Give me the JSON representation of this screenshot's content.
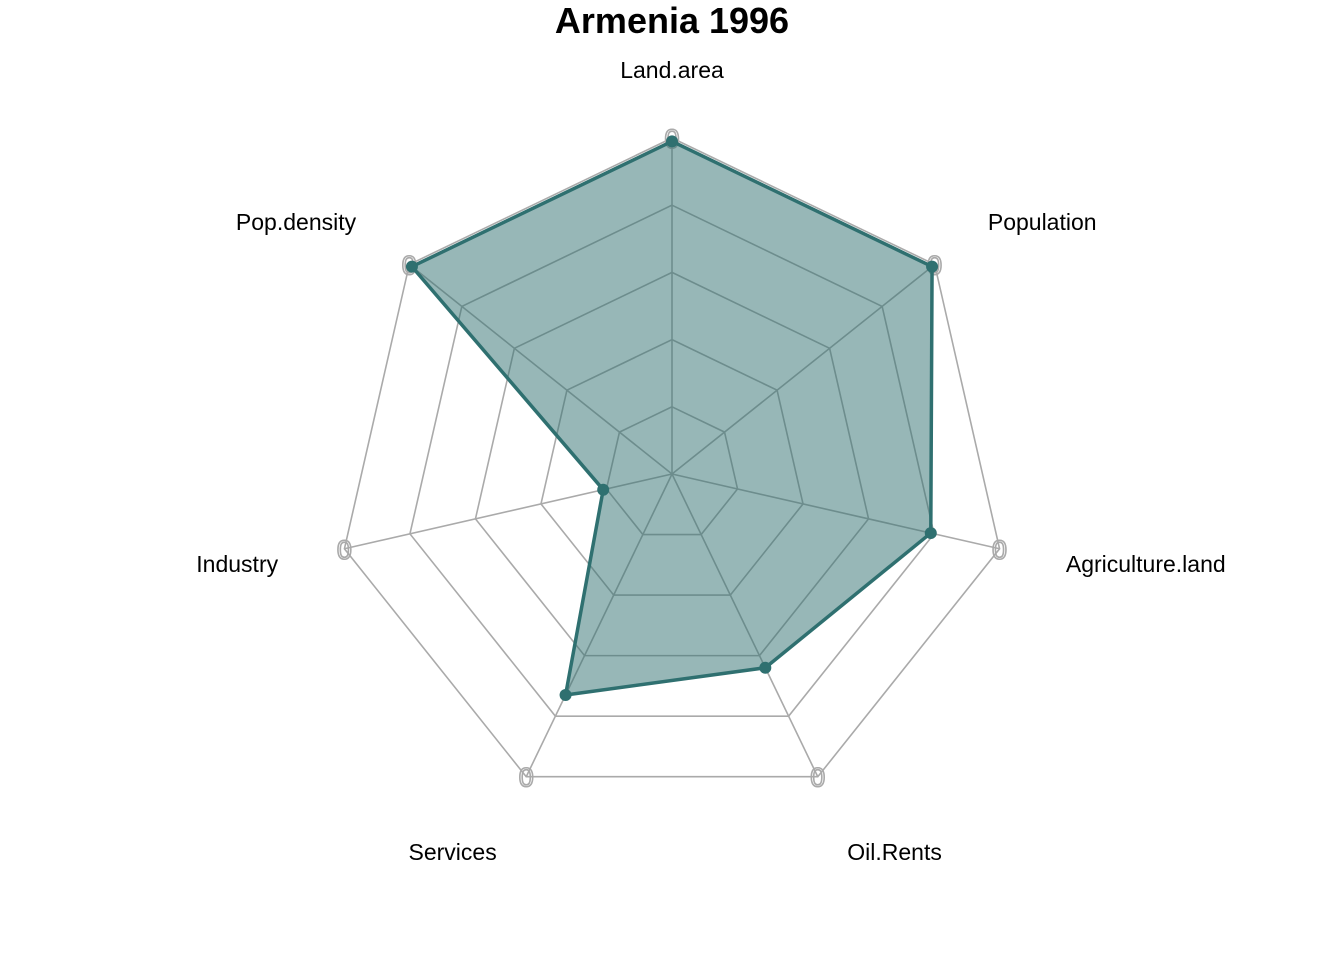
{
  "chart_data": {
    "type": "radar",
    "title": "Armenia 1996",
    "axes": [
      "Land.area",
      "Population",
      "Agriculture.land",
      "Oil.Rents",
      "Services",
      "Industry",
      "Pop.density"
    ],
    "axis_range": [
      0,
      1
    ],
    "grid_levels": 5,
    "ring_tick_label": "0",
    "series": [
      {
        "values": [
          0.99,
          0.99,
          0.79,
          0.64,
          0.73,
          0.21,
          0.99
        ],
        "color": "#2f7070"
      }
    ],
    "grid": true,
    "legend": "none"
  }
}
